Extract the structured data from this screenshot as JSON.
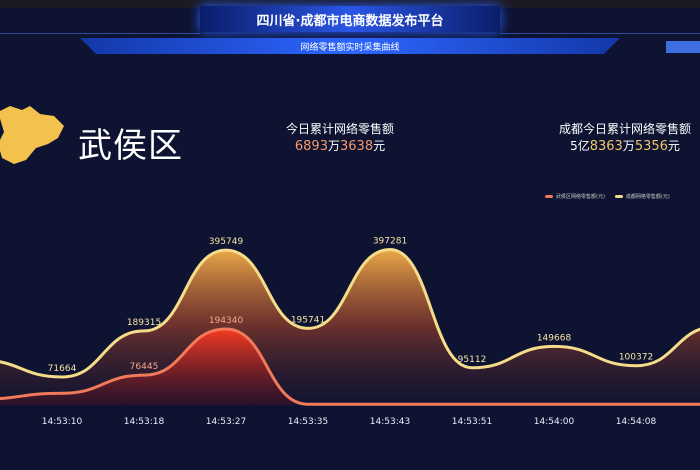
{
  "header": {
    "title": "四川省·成都市电商数据发布平台",
    "subtitle": "网络零售额实时采集曲线"
  },
  "region": {
    "name": "武侯区",
    "shape_color": "#f2c14e"
  },
  "stats": [
    {
      "label": "今日累计网络零售额",
      "parts": [
        "6893",
        "万",
        "3638",
        "元"
      ]
    },
    {
      "label": "成都今日累计网络零售额",
      "parts": [
        "5亿",
        "8363",
        "万",
        "5356",
        "元"
      ]
    }
  ],
  "chart_data": {
    "type": "area",
    "title": "",
    "categories": [
      "14:53:10",
      "14:53:18",
      "14:53:27",
      "14:53:35",
      "14:53:43",
      "14:53:51",
      "14:54:00",
      "14:54:08"
    ],
    "series": [
      {
        "name": "成都网络零售额(元)",
        "color": "#f5dc8a",
        "values": [
          71664,
          189315,
          395749,
          195741,
          397281,
          95112,
          149668,
          100372
        ],
        "labels": [
          "71664",
          "189315",
          "395749",
          "195741",
          "397281",
          "95112",
          "149668",
          "100372"
        ]
      },
      {
        "name": "武侯区网络零售额(元)",
        "color": "#f07a5a",
        "values": [
          30000,
          76445,
          194340,
          2000,
          2000,
          2000,
          2000,
          2000
        ],
        "labels": [
          "",
          "76445",
          "194340",
          "",
          "",
          "",
          "",
          ""
        ]
      }
    ],
    "ylim": [
      0,
      400000
    ],
    "grid": false,
    "legend": "top-right"
  }
}
